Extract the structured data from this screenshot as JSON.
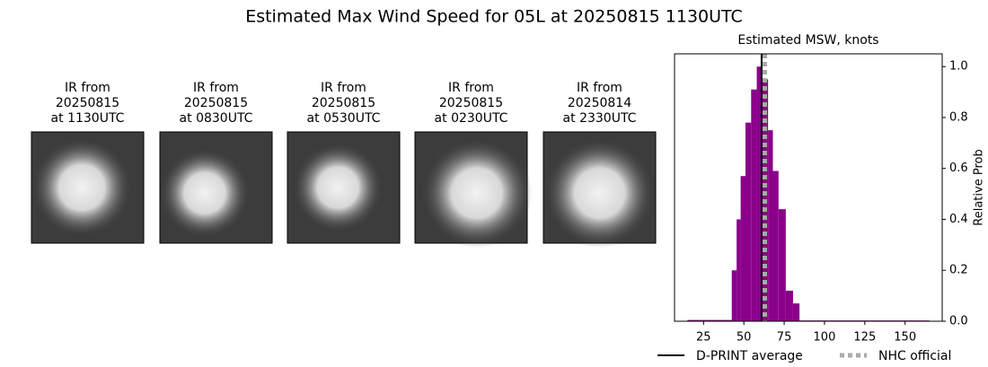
{
  "title": "Estimated Max Wind Speed for 05L at 20250815 1130UTC",
  "panels": [
    {
      "lines": [
        "IR from",
        "20250815",
        "at 1130UTC"
      ]
    },
    {
      "lines": [
        "IR from",
        "20250815",
        "at 0830UTC"
      ]
    },
    {
      "lines": [
        "IR from",
        "20250815",
        "at 0530UTC"
      ]
    },
    {
      "lines": [
        "IR from",
        "20250815",
        "at 0230UTC"
      ]
    },
    {
      "lines": [
        "IR from",
        "20250814",
        "at 2330UTC"
      ]
    }
  ],
  "chart_data": {
    "type": "histogram",
    "title": "Estimated MSW, knots",
    "y_label": "Relative Prob",
    "y_axis_side": "right",
    "color": "#8b008b",
    "bins": [
      15,
      42.5,
      45.5,
      48,
      51,
      54.5,
      58,
      61,
      65,
      68,
      71.5,
      76,
      80.5,
      84.5,
      165
    ],
    "values": [
      0.005,
      0.2,
      0.4,
      0.57,
      0.78,
      0.91,
      1.0,
      0.95,
      0.75,
      0.59,
      0.44,
      0.12,
      0.07,
      0.003
    ],
    "xlim": [
      7,
      173
    ],
    "ylim": [
      0,
      1.05
    ],
    "xticks": [
      25,
      50,
      75,
      100,
      125,
      150
    ],
    "yticks": [
      {
        "value": 0,
        "label": "0.0"
      },
      0.2,
      0.4,
      0.6,
      0.8,
      {
        "value": 1,
        "label": "1.0"
      }
    ],
    "lines": [
      {
        "name": "D-PRINT average",
        "value": 61,
        "color": "#000000",
        "style": "solid"
      },
      {
        "name": "NHC official",
        "value": 63,
        "color": "#aaaaaa",
        "style": "dotted"
      }
    ]
  }
}
